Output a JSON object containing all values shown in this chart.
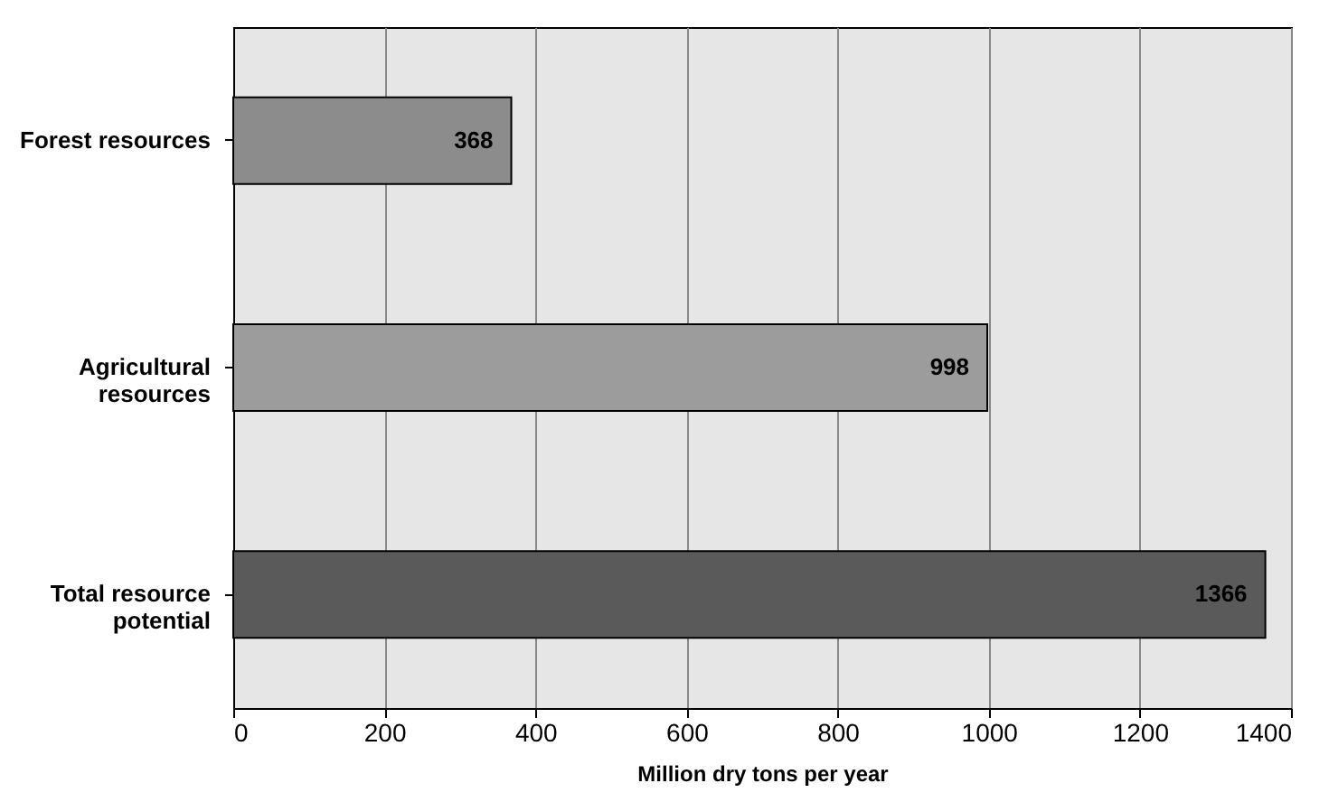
{
  "chart_data": {
    "type": "bar",
    "orientation": "horizontal",
    "xlabel": "Million dry tons per year",
    "categories": [
      "Forest resources",
      "Agricultural resources",
      "Total resource potential"
    ],
    "values": [
      368,
      998,
      1366
    ],
    "colors": [
      "#8c8c8c",
      "#9c9c9c",
      "#5a5a5a"
    ],
    "xlim": [
      0,
      1400
    ],
    "xticks": [
      0,
      200,
      400,
      600,
      800,
      1000,
      1200,
      1400
    ],
    "grid": "x",
    "data_labels": true
  }
}
